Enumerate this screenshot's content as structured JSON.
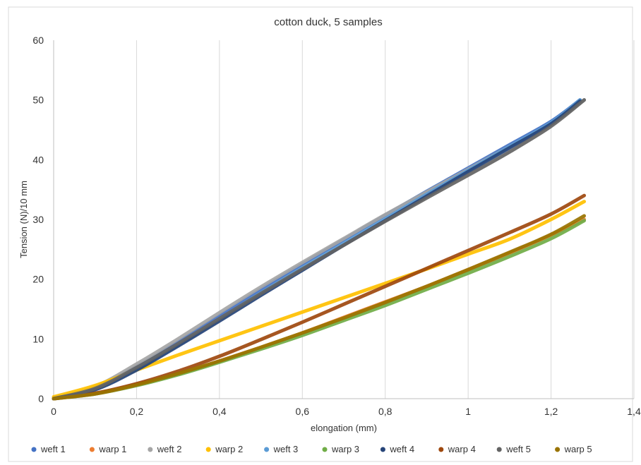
{
  "chart_data": {
    "type": "line",
    "title": "cotton duck, 5 samples",
    "xlabel": "elongation (mm)",
    "ylabel": "Tension (N)/10 mm",
    "xlim": [
      0,
      1.4
    ],
    "ylim": [
      0,
      60
    ],
    "x_ticks": [
      "0",
      "0,2",
      "0,4",
      "0,6",
      "0,8",
      "1",
      "1,2",
      "1,4"
    ],
    "y_ticks": [
      "0",
      "10",
      "20",
      "30",
      "40",
      "50",
      "60"
    ],
    "grid": "vertical",
    "legend_position": "bottom",
    "series": [
      {
        "name": "weft 1",
        "color": "#4472C4",
        "x": [
          0,
          0.1,
          0.2,
          0.3,
          0.4,
          0.5,
          0.6,
          0.7,
          0.8,
          0.9,
          1.0,
          1.1,
          1.2,
          1.27
        ],
        "y": [
          0,
          1.8,
          5.4,
          9.5,
          13.9,
          18.3,
          22.5,
          26.6,
          30.7,
          34.7,
          38.6,
          42.5,
          46.4,
          50.0
        ]
      },
      {
        "name": "warp 1",
        "color": "#ED7D31",
        "x": [
          0,
          0.1,
          0.2,
          0.3,
          0.4,
          0.5,
          0.6,
          0.7,
          0.8,
          0.9,
          1.0,
          1.1,
          1.2,
          1.28
        ],
        "y": [
          0,
          0.9,
          2.4,
          4.1,
          6.3,
          8.6,
          11.0,
          13.6,
          16.2,
          18.8,
          21.6,
          24.4,
          27.4,
          30.0
        ]
      },
      {
        "name": "weft 2",
        "color": "#A5A5A5",
        "x": [
          0,
          0.1,
          0.2,
          0.3,
          0.4,
          0.5,
          0.6,
          0.7,
          0.8,
          0.9,
          1.0,
          1.1,
          1.2,
          1.28
        ],
        "y": [
          0,
          2.0,
          5.8,
          10.0,
          14.4,
          18.7,
          22.8,
          26.8,
          30.8,
          34.6,
          38.4,
          42.2,
          46.0,
          50.0
        ]
      },
      {
        "name": "warp 2",
        "color": "#FFC000",
        "x": [
          0,
          0.1,
          0.2,
          0.3,
          0.4,
          0.5,
          0.6,
          0.7,
          0.8,
          0.9,
          1.0,
          1.1,
          1.2,
          1.28
        ],
        "y": [
          0.3,
          2.2,
          4.8,
          7.3,
          9.7,
          12.1,
          14.5,
          16.9,
          19.3,
          21.7,
          24.2,
          26.7,
          30.0,
          33.0
        ]
      },
      {
        "name": "weft 3",
        "color": "#5B9BD5",
        "x": [
          0,
          0.1,
          0.2,
          0.3,
          0.4,
          0.5,
          0.6,
          0.7,
          0.8,
          0.9,
          1.0,
          1.1,
          1.2,
          1.27
        ],
        "y": [
          0,
          1.6,
          5.0,
          9.0,
          13.3,
          17.7,
          21.9,
          26.0,
          30.1,
          34.2,
          38.2,
          42.2,
          46.2,
          50.0
        ]
      },
      {
        "name": "warp 3",
        "color": "#70AD47",
        "x": [
          0,
          0.1,
          0.2,
          0.3,
          0.4,
          0.5,
          0.6,
          0.7,
          0.8,
          0.9,
          1.0,
          1.1,
          1.2,
          1.28
        ],
        "y": [
          0,
          0.8,
          2.2,
          4.0,
          6.1,
          8.3,
          10.6,
          13.1,
          15.6,
          18.3,
          21.0,
          23.8,
          26.8,
          29.8
        ]
      },
      {
        "name": "weft 4",
        "color": "#264478",
        "x": [
          0,
          0.1,
          0.2,
          0.3,
          0.4,
          0.5,
          0.6,
          0.7,
          0.8,
          0.9,
          1.0,
          1.1,
          1.2,
          1.27
        ],
        "y": [
          0,
          1.5,
          4.8,
          8.8,
          13.0,
          17.3,
          21.5,
          25.7,
          29.8,
          33.9,
          38.0,
          42.0,
          46.0,
          49.8
        ]
      },
      {
        "name": "warp 4",
        "color": "#9E480E",
        "x": [
          0,
          0.1,
          0.2,
          0.3,
          0.4,
          0.5,
          0.6,
          0.7,
          0.8,
          0.9,
          1.0,
          1.1,
          1.2,
          1.28
        ],
        "y": [
          0,
          0.9,
          2.5,
          4.6,
          7.1,
          9.9,
          12.8,
          15.8,
          18.8,
          21.8,
          24.8,
          27.8,
          30.9,
          34.0
        ]
      },
      {
        "name": "weft 5",
        "color": "#636363",
        "x": [
          0,
          0.1,
          0.2,
          0.3,
          0.4,
          0.5,
          0.6,
          0.7,
          0.8,
          0.9,
          1.0,
          1.1,
          1.2,
          1.28
        ],
        "y": [
          0,
          1.7,
          5.2,
          9.2,
          13.4,
          17.6,
          21.7,
          25.7,
          29.7,
          33.6,
          37.4,
          41.3,
          45.6,
          50.0
        ]
      },
      {
        "name": "warp 5",
        "color": "#997300",
        "x": [
          0,
          0.1,
          0.2,
          0.3,
          0.4,
          0.5,
          0.6,
          0.7,
          0.8,
          0.9,
          1.0,
          1.1,
          1.2,
          1.28
        ],
        "y": [
          0,
          0.8,
          2.3,
          4.2,
          6.3,
          8.6,
          11.0,
          13.5,
          16.1,
          18.8,
          21.6,
          24.5,
          27.5,
          30.6
        ]
      }
    ]
  }
}
